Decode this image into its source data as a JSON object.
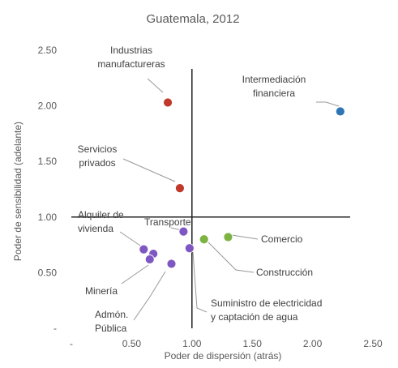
{
  "chart_data": {
    "type": "scatter",
    "title": "Guatemala, 2012",
    "xlabel": "Poder de dispersión (atrás)",
    "ylabel": "Poder de sensibilidad (adelante)",
    "xlim": [
      0,
      2.5
    ],
    "ylim": [
      0,
      2.5
    ],
    "x_ticks": [
      "-",
      "0.50",
      "1.00",
      "1.50",
      "2.00",
      "2.50"
    ],
    "y_ticks": [
      "-",
      "0.50",
      "1.00",
      "1.50",
      "2.00",
      "2.50"
    ],
    "reference_lines": {
      "x": 1.0,
      "y": 1.0
    },
    "grid": false,
    "colors": {
      "red": "#c0392b",
      "blue": "#2e75b6",
      "green": "#7cb342",
      "purple": "#7e57c2"
    },
    "points": [
      {
        "x": 0.8,
        "y": 2.03,
        "color": "red"
      },
      {
        "x": 0.9,
        "y": 1.26,
        "color": "red"
      },
      {
        "x": 2.23,
        "y": 1.95,
        "color": "blue"
      },
      {
        "x": 1.1,
        "y": 0.8,
        "color": "green"
      },
      {
        "x": 1.3,
        "y": 0.82,
        "color": "green"
      },
      {
        "x": 0.93,
        "y": 0.87,
        "color": "purple"
      },
      {
        "x": 0.98,
        "y": 0.72,
        "color": "purple"
      },
      {
        "x": 0.6,
        "y": 0.71,
        "color": "purple"
      },
      {
        "x": 0.68,
        "y": 0.67,
        "color": "purple"
      },
      {
        "x": 0.65,
        "y": 0.62,
        "color": "purple"
      },
      {
        "x": 0.83,
        "y": 0.58,
        "color": "purple"
      }
    ],
    "annotations": [
      {
        "lines": [
          "Industrias",
          "manufactureras"
        ]
      },
      {
        "lines": [
          "Servicios",
          "privados"
        ]
      },
      {
        "lines": [
          "Intermediación",
          "financiera"
        ]
      },
      {
        "lines": [
          "Comercio"
        ]
      },
      {
        "lines": [
          "Construcción"
        ]
      },
      {
        "lines": [
          "Transporte"
        ]
      },
      {
        "lines": [
          "Suministro de electricidad",
          "y captación de agua"
        ]
      },
      {
        "lines": [
          "Alquiler de",
          "vivienda"
        ]
      },
      {
        "lines": [
          "Minería"
        ]
      },
      {
        "lines": [
          "Admón.",
          "Pública"
        ]
      }
    ]
  }
}
